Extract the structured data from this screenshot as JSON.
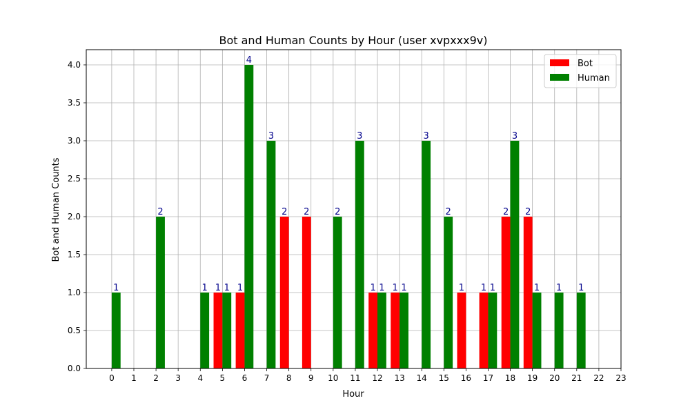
{
  "chart_data": {
    "type": "bar",
    "title": "Bot and Human Counts by Hour (user xvpxxx9v)",
    "xlabel": "Hour",
    "ylabel": "Bot and Human Counts",
    "ylim": [
      0,
      4.2
    ],
    "yticks": [
      "0.0",
      "0.5",
      "1.0",
      "1.5",
      "2.0",
      "2.5",
      "3.0",
      "3.5",
      "4.0"
    ],
    "grid": true,
    "legend_position": "top-right",
    "colors": {
      "Bot": "#ff0000",
      "Human": "#008000",
      "data_label": "#00008b"
    },
    "series": [
      {
        "name": "Bot",
        "points": [
          {
            "x": 4.8,
            "y": 1
          },
          {
            "x": 5.8,
            "y": 1
          },
          {
            "x": 7.8,
            "y": 2
          },
          {
            "x": 8.8,
            "y": 2
          },
          {
            "x": 11.8,
            "y": 1
          },
          {
            "x": 12.8,
            "y": 1
          },
          {
            "x": 15.8,
            "y": 1
          },
          {
            "x": 16.8,
            "y": 1
          },
          {
            "x": 17.8,
            "y": 2
          },
          {
            "x": 18.8,
            "y": 2
          }
        ]
      },
      {
        "name": "Human",
        "points": [
          {
            "x": 0.2,
            "y": 1
          },
          {
            "x": 2.2,
            "y": 2
          },
          {
            "x": 4.2,
            "y": 1
          },
          {
            "x": 5.2,
            "y": 1
          },
          {
            "x": 6.2,
            "y": 4
          },
          {
            "x": 7.2,
            "y": 3
          },
          {
            "x": 10.2,
            "y": 2
          },
          {
            "x": 11.2,
            "y": 3
          },
          {
            "x": 12.2,
            "y": 1
          },
          {
            "x": 13.2,
            "y": 1
          },
          {
            "x": 14.2,
            "y": 3
          },
          {
            "x": 15.2,
            "y": 2
          },
          {
            "x": 17.2,
            "y": 1
          },
          {
            "x": 18.2,
            "y": 3
          },
          {
            "x": 19.2,
            "y": 1
          },
          {
            "x": 20.2,
            "y": 1
          },
          {
            "x": 21.2,
            "y": 1
          }
        ]
      }
    ],
    "xticks": [
      {
        "x": 0,
        "label": "0"
      },
      {
        "x": 1,
        "label": "1"
      },
      {
        "x": 2,
        "label": "2"
      },
      {
        "x": 3,
        "label": "3"
      },
      {
        "x": 4,
        "label": "4"
      },
      {
        "x": 5,
        "label": "5"
      },
      {
        "x": 6,
        "label": "6"
      },
      {
        "x": 7,
        "label": "7"
      },
      {
        "x": 8,
        "label": "8"
      },
      {
        "x": 9,
        "label": "9"
      },
      {
        "x": 10,
        "label": "10"
      },
      {
        "x": 11,
        "label": "11"
      },
      {
        "x": 12,
        "label": "12"
      },
      {
        "x": 13,
        "label": "13"
      },
      {
        "x": 14,
        "label": "14"
      },
      {
        "x": 15,
        "label": "15"
      },
      {
        "x": 16,
        "label": "16"
      },
      {
        "x": 17,
        "label": "17"
      },
      {
        "x": 18,
        "label": "18"
      },
      {
        "x": 19,
        "label": "19"
      },
      {
        "x": 20,
        "label": "20"
      },
      {
        "x": 21,
        "label": "21"
      },
      {
        "x": 22,
        "label": "22"
      },
      {
        "x": 23,
        "label": "23"
      }
    ]
  }
}
